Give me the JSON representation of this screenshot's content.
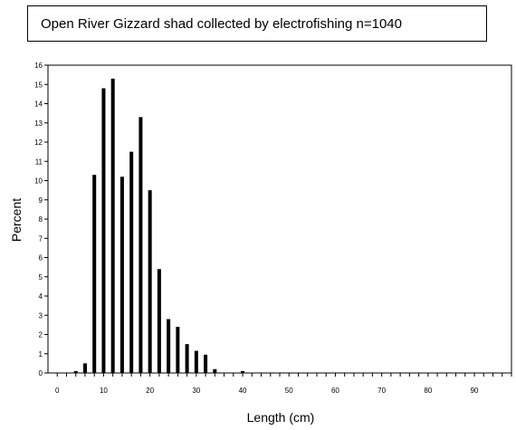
{
  "chart_data": {
    "type": "bar",
    "title": "Open River Gizzard shad collected by electrofishing   n=1040",
    "xlabel": "Length (cm)",
    "ylabel": "Percent",
    "xlim": [
      -2,
      98
    ],
    "ylim": [
      0,
      16
    ],
    "x_tick_labels": [
      0,
      10,
      20,
      30,
      40,
      50,
      60,
      70,
      80,
      90
    ],
    "y_tick_labels": [
      0,
      1,
      2,
      3,
      4,
      5,
      6,
      7,
      8,
      9,
      10,
      11,
      12,
      13,
      14,
      15,
      16
    ],
    "x_minor_step": 2,
    "grid": false,
    "bar_color": "#000000",
    "x": [
      4,
      6,
      8,
      10,
      12,
      14,
      16,
      18,
      20,
      22,
      24,
      26,
      28,
      30,
      32,
      34,
      40
    ],
    "values": [
      0.1,
      0.5,
      10.3,
      14.8,
      15.3,
      10.2,
      11.5,
      13.3,
      9.5,
      5.4,
      2.8,
      2.4,
      1.5,
      1.15,
      0.95,
      0.2,
      0.1
    ]
  }
}
